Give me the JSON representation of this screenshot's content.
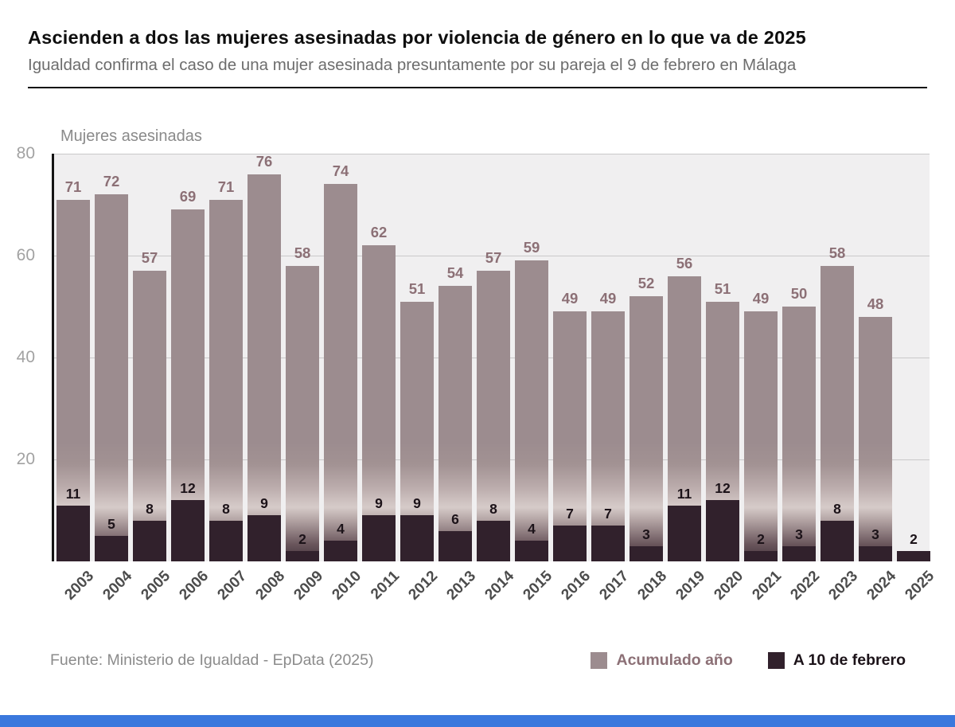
{
  "header": {
    "title": "Ascienden a dos las mujeres asesinadas por violencia de género en lo que va de 2025",
    "subtitle": "Igualdad confirma el caso de una mujer  asesinada presuntamente por su pareja el 9 de febrero en Málaga"
  },
  "chart_data": {
    "type": "bar",
    "ylabel": "Mujeres asesinadas",
    "xlabel": "",
    "categories": [
      "2003",
      "2004",
      "2005",
      "2006",
      "2007",
      "2008",
      "2009",
      "2010",
      "2011",
      "2012",
      "2013",
      "2014",
      "2015",
      "2016",
      "2017",
      "2018",
      "2019",
      "2020",
      "2021",
      "2022",
      "2023",
      "2024",
      "2025"
    ],
    "series": [
      {
        "name": "Acumulado año",
        "color": "#9c8c8f",
        "label_color": "#8c7076",
        "values": [
          71,
          72,
          57,
          69,
          71,
          76,
          58,
          74,
          62,
          51,
          54,
          57,
          59,
          49,
          49,
          52,
          56,
          51,
          49,
          50,
          58,
          48,
          null
        ]
      },
      {
        "name": "A 10 de febrero",
        "color": "#31212c",
        "label_color": "#1c1319",
        "values": [
          11,
          5,
          8,
          12,
          8,
          9,
          2,
          4,
          9,
          9,
          6,
          8,
          4,
          7,
          7,
          3,
          11,
          12,
          2,
          3,
          8,
          3,
          2
        ]
      }
    ],
    "ylim": [
      0,
      80
    ],
    "yticks": [
      80,
      60,
      40,
      20
    ],
    "grid": true,
    "legend_position": "bottom-right"
  },
  "footer": {
    "source": "Fuente: Ministerio de Igualdad - EpData (2025)",
    "brand_bar_color": "#3a78dd"
  }
}
